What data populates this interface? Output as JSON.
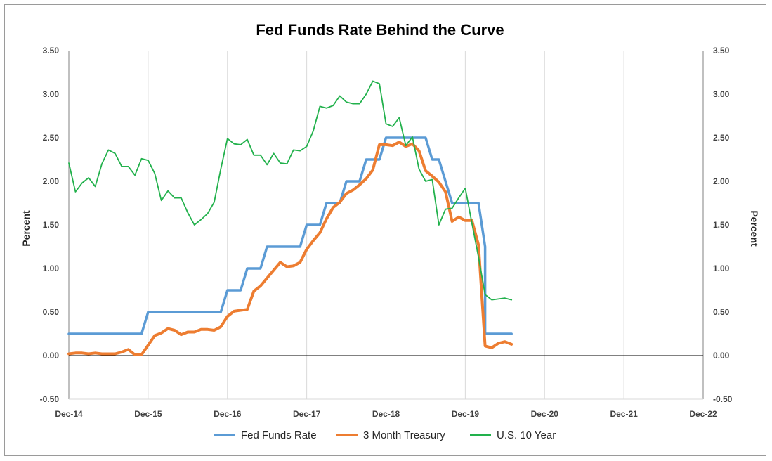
{
  "chart_data": {
    "type": "line",
    "title": "Fed Funds Rate Behind the Curve",
    "ylabel_left": "Percent",
    "ylabel_right": "Percent",
    "ylim": [
      -0.5,
      3.5
    ],
    "yticks": [
      -0.5,
      0.0,
      0.5,
      1.0,
      1.5,
      2.0,
      2.5,
      3.0,
      3.5
    ],
    "ytick_labels": [
      "-0.50",
      "0.00",
      "0.50",
      "1.00",
      "1.50",
      "2.00",
      "2.50",
      "3.00",
      "3.50"
    ],
    "xlim": [
      "Dec-14",
      "Dec-22"
    ],
    "x_tick_labels": [
      "Dec-14",
      "Dec-15",
      "Dec-16",
      "Dec-17",
      "Dec-18",
      "Dec-19",
      "Dec-20",
      "Dec-21",
      "Dec-22"
    ],
    "grid": "vertical",
    "legend_position": "bottom",
    "series": [
      {
        "name": "Fed Funds Rate",
        "color": "#5b9bd5",
        "style": "step",
        "points": [
          [
            "2014-12",
            0.25
          ],
          [
            "2015-11",
            0.25
          ],
          [
            "2015-12",
            0.5
          ],
          [
            "2016-11",
            0.5
          ],
          [
            "2016-12",
            0.75
          ],
          [
            "2017-02",
            0.75
          ],
          [
            "2017-03",
            1.0
          ],
          [
            "2017-05",
            1.0
          ],
          [
            "2017-06",
            1.25
          ],
          [
            "2017-11",
            1.25
          ],
          [
            "2017-12",
            1.5
          ],
          [
            "2018-02",
            1.5
          ],
          [
            "2018-03",
            1.75
          ],
          [
            "2018-05",
            1.75
          ],
          [
            "2018-06",
            2.0
          ],
          [
            "2018-08",
            2.0
          ],
          [
            "2018-09",
            2.25
          ],
          [
            "2018-11",
            2.25
          ],
          [
            "2018-12",
            2.5
          ],
          [
            "2019-06",
            2.5
          ],
          [
            "2019-07",
            2.25
          ],
          [
            "2019-08",
            2.25
          ],
          [
            "2019-09",
            2.0
          ],
          [
            "2019-09",
            2.0
          ],
          [
            "2019-10",
            1.75
          ],
          [
            "2020-02",
            1.75
          ],
          [
            "2020-03",
            1.25
          ],
          [
            "2020-03",
            0.25
          ],
          [
            "2020-07",
            0.25
          ]
        ]
      },
      {
        "name": "3 Month Treasury",
        "color": "#ed7d31",
        "style": "line",
        "points": [
          [
            "2014-12",
            0.02
          ],
          [
            "2015-01",
            0.03
          ],
          [
            "2015-02",
            0.03
          ],
          [
            "2015-03",
            0.02
          ],
          [
            "2015-04",
            0.03
          ],
          [
            "2015-05",
            0.02
          ],
          [
            "2015-06",
            0.02
          ],
          [
            "2015-07",
            0.02
          ],
          [
            "2015-08",
            0.04
          ],
          [
            "2015-09",
            0.07
          ],
          [
            "2015-10",
            0.01
          ],
          [
            "2015-11",
            0.01
          ],
          [
            "2015-12",
            0.12
          ],
          [
            "2016-01",
            0.23
          ],
          [
            "2016-02",
            0.26
          ],
          [
            "2016-03",
            0.31
          ],
          [
            "2016-04",
            0.29
          ],
          [
            "2016-05",
            0.24
          ],
          [
            "2016-06",
            0.27
          ],
          [
            "2016-07",
            0.27
          ],
          [
            "2016-08",
            0.3
          ],
          [
            "2016-09",
            0.3
          ],
          [
            "2016-10",
            0.29
          ],
          [
            "2016-11",
            0.33
          ],
          [
            "2016-12",
            0.45
          ],
          [
            "2017-01",
            0.51
          ],
          [
            "2017-02",
            0.52
          ],
          [
            "2017-03",
            0.53
          ],
          [
            "2017-04",
            0.74
          ],
          [
            "2017-05",
            0.8
          ],
          [
            "2017-06",
            0.89
          ],
          [
            "2017-07",
            0.98
          ],
          [
            "2017-08",
            1.07
          ],
          [
            "2017-09",
            1.02
          ],
          [
            "2017-10",
            1.03
          ],
          [
            "2017-11",
            1.07
          ],
          [
            "2017-12",
            1.22
          ],
          [
            "2018-01",
            1.32
          ],
          [
            "2018-02",
            1.41
          ],
          [
            "2018-03",
            1.57
          ],
          [
            "2018-04",
            1.7
          ],
          [
            "2018-05",
            1.76
          ],
          [
            "2018-06",
            1.86
          ],
          [
            "2018-07",
            1.9
          ],
          [
            "2018-08",
            1.96
          ],
          [
            "2018-09",
            2.03
          ],
          [
            "2018-10",
            2.13
          ],
          [
            "2018-11",
            2.42
          ],
          [
            "2018-12",
            2.42
          ],
          [
            "2019-01",
            2.41
          ],
          [
            "2019-02",
            2.45
          ],
          [
            "2019-03",
            2.4
          ],
          [
            "2019-04",
            2.43
          ],
          [
            "2019-05",
            2.35
          ],
          [
            "2019-06",
            2.12
          ],
          [
            "2019-07",
            2.06
          ],
          [
            "2019-08",
            1.99
          ],
          [
            "2019-09",
            1.88
          ],
          [
            "2019-10",
            1.54
          ],
          [
            "2019-11",
            1.59
          ],
          [
            "2019-12",
            1.55
          ],
          [
            "2020-01",
            1.55
          ],
          [
            "2020-02",
            1.27
          ],
          [
            "2020-03",
            0.11
          ],
          [
            "2020-04",
            0.09
          ],
          [
            "2020-05",
            0.14
          ],
          [
            "2020-06",
            0.16
          ],
          [
            "2020-07",
            0.13
          ]
        ]
      },
      {
        "name": "U.S. 10 Year",
        "color": "#22b14c",
        "style": "line",
        "points": [
          [
            "2014-12",
            2.21
          ],
          [
            "2015-01",
            1.88
          ],
          [
            "2015-02",
            1.98
          ],
          [
            "2015-03",
            2.04
          ],
          [
            "2015-04",
            1.94
          ],
          [
            "2015-05",
            2.2
          ],
          [
            "2015-06",
            2.36
          ],
          [
            "2015-07",
            2.32
          ],
          [
            "2015-08",
            2.17
          ],
          [
            "2015-09",
            2.17
          ],
          [
            "2015-10",
            2.07
          ],
          [
            "2015-11",
            2.26
          ],
          [
            "2015-12",
            2.24
          ],
          [
            "2016-01",
            2.09
          ],
          [
            "2016-02",
            1.78
          ],
          [
            "2016-03",
            1.89
          ],
          [
            "2016-04",
            1.81
          ],
          [
            "2016-05",
            1.81
          ],
          [
            "2016-06",
            1.64
          ],
          [
            "2016-07",
            1.5
          ],
          [
            "2016-08",
            1.56
          ],
          [
            "2016-09",
            1.63
          ],
          [
            "2016-10",
            1.76
          ],
          [
            "2016-11",
            2.14
          ],
          [
            "2016-12",
            2.49
          ],
          [
            "2017-01",
            2.43
          ],
          [
            "2017-02",
            2.42
          ],
          [
            "2017-03",
            2.48
          ],
          [
            "2017-04",
            2.3
          ],
          [
            "2017-05",
            2.3
          ],
          [
            "2017-06",
            2.19
          ],
          [
            "2017-07",
            2.32
          ],
          [
            "2017-08",
            2.21
          ],
          [
            "2017-09",
            2.2
          ],
          [
            "2017-10",
            2.36
          ],
          [
            "2017-11",
            2.35
          ],
          [
            "2017-12",
            2.4
          ],
          [
            "2018-01",
            2.58
          ],
          [
            "2018-02",
            2.86
          ],
          [
            "2018-03",
            2.84
          ],
          [
            "2018-04",
            2.87
          ],
          [
            "2018-05",
            2.98
          ],
          [
            "2018-06",
            2.91
          ],
          [
            "2018-07",
            2.89
          ],
          [
            "2018-08",
            2.89
          ],
          [
            "2018-09",
            3.0
          ],
          [
            "2018-10",
            3.15
          ],
          [
            "2018-11",
            3.12
          ],
          [
            "2018-12",
            2.66
          ],
          [
            "2019-01",
            2.63
          ],
          [
            "2019-02",
            2.73
          ],
          [
            "2019-03",
            2.41
          ],
          [
            "2019-04",
            2.51
          ],
          [
            "2019-05",
            2.14
          ],
          [
            "2019-06",
            2.0
          ],
          [
            "2019-07",
            2.02
          ],
          [
            "2019-08",
            1.5
          ],
          [
            "2019-09",
            1.68
          ],
          [
            "2019-10",
            1.69
          ],
          [
            "2019-11",
            1.81
          ],
          [
            "2019-12",
            1.92
          ],
          [
            "2020-01",
            1.52
          ],
          [
            "2020-02",
            1.13
          ],
          [
            "2020-03",
            0.7
          ],
          [
            "2020-04",
            0.64
          ],
          [
            "2020-05",
            0.65
          ],
          [
            "2020-06",
            0.66
          ],
          [
            "2020-07",
            0.64
          ]
        ]
      }
    ]
  }
}
